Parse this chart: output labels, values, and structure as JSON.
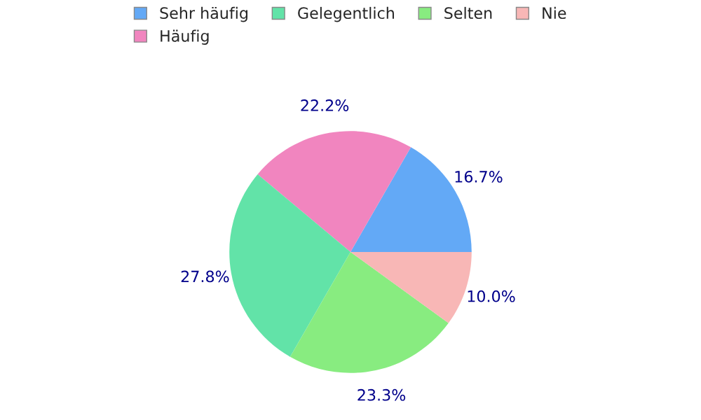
{
  "chart_data": {
    "type": "pie",
    "categories": [
      "Sehr häufig",
      "Häufig",
      "Gelegentlich",
      "Selten",
      "Nie"
    ],
    "values": [
      16.7,
      22.2,
      27.8,
      23.3,
      10.0
    ],
    "colors": [
      "#63a9f6",
      "#f185bf",
      "#62e3a8",
      "#88ec80",
      "#f8b7b6"
    ],
    "value_labels": [
      "16.7%",
      "22.2%",
      "27.8%",
      "23.3%",
      "10.0%"
    ],
    "legend": "top"
  }
}
